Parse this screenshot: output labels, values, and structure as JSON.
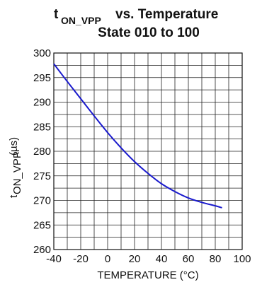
{
  "chart_data": {
    "type": "line",
    "title": {
      "main": "t",
      "main_subscript": "ON_VPP",
      "main_suffix": " vs. Temperature",
      "subtitle": "State 010 to 100"
    },
    "xlabel": "TEMPERATURE (°C)",
    "ylabel": "t",
    "ylabel_subscript": "ON_VPP",
    "ylabel_suffix": " (µs)",
    "xlim": [
      -40,
      100
    ],
    "ylim": [
      260,
      300
    ],
    "x_ticks": [
      -40,
      -20,
      0,
      20,
      40,
      60,
      80,
      100
    ],
    "y_ticks": [
      260,
      265,
      270,
      275,
      280,
      285,
      290,
      295,
      300
    ],
    "grid": true,
    "grid_x_step": 10,
    "grid_y_step": 2.5,
    "series": [
      {
        "color": "#1a1acc",
        "x": [
          -40,
          -30,
          -20,
          -10,
          0,
          10,
          20,
          30,
          40,
          50,
          60,
          70,
          80,
          85
        ],
        "y": [
          297.8,
          294.2,
          290.7,
          287.2,
          283.8,
          280.7,
          277.9,
          275.5,
          273.4,
          271.8,
          270.5,
          269.6,
          268.9,
          268.5
        ]
      }
    ]
  }
}
